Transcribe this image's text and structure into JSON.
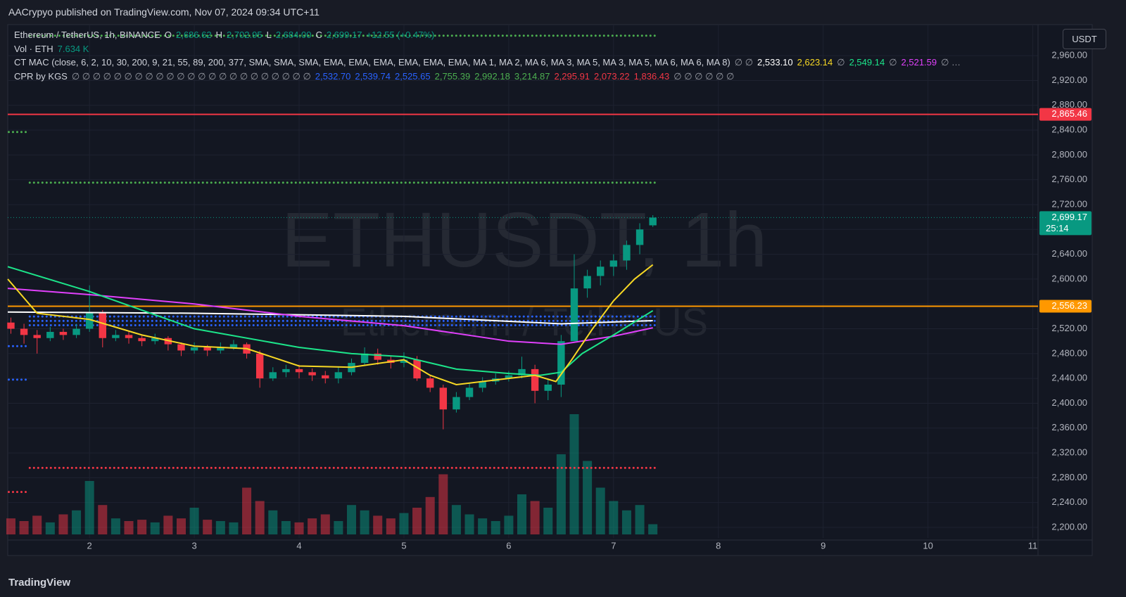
{
  "header": {
    "publisher": "AACrypyo published on TradingView.com, Nov 07, 2024 09:34 UTC+11",
    "brand": "TradingView",
    "currency_button": "USDT"
  },
  "legend": {
    "symbol": "Ethereum / TetherUS, 1h, BINANCE",
    "o_label": "O",
    "o": "2,686.62",
    "h_label": "H",
    "h": "2,702.95",
    "l_label": "L",
    "l": "2,684.00",
    "c_label": "C",
    "c": "2,699.17",
    "change": "+12.55 (+0.47%)",
    "vol_label": "Vol · ETH",
    "vol": "7.634 K",
    "mac_label": "CT MAC (close, 6, 2, 10, 30, 200, 9, 21, 55, 89, 200, 377, SMA, SMA, SMA, EMA, EMA, EMA, EMA, EMA, EMA, MA 1, MA 2, MA 6, MA 3, MA 5, MA 3, MA 5, MA 6, MA 6, MA 8)",
    "mac_na": "∅ ∅",
    "mac_white": "2,533.10",
    "mac_yellow": "2,623.14",
    "mac_na2": "∅",
    "mac_green": "2,549.14",
    "mac_na3": "∅",
    "mac_magenta": "2,521.59",
    "mac_more": "∅ …",
    "cpr_label": "CPR by KGS",
    "cpr_na": "∅ ∅ ∅ ∅ ∅ ∅ ∅ ∅ ∅ ∅ ∅ ∅ ∅ ∅ ∅ ∅ ∅ ∅ ∅ ∅ ∅ ∅ ∅",
    "cpr_blue": [
      "2,532.70",
      "2,539.74",
      "2,525.65"
    ],
    "cpr_green": [
      "2,755.39",
      "2,992.18",
      "3,214.87"
    ],
    "cpr_red": [
      "2,295.91",
      "2,073.22",
      "1,836.43"
    ],
    "cpr_na2": "∅ ∅ ∅ ∅ ∅ ∅"
  },
  "chart_data": {
    "type": "candlestick",
    "watermark": "ETHUSDT, 1h",
    "watermark_sub": "Ethereum / TetherUS",
    "grid": true,
    "up_color": "#089981",
    "down_color": "#f23645",
    "xlim": [
      1.22,
      11.05
    ],
    "ylim": [
      2183,
      3010
    ],
    "xticks": [
      2,
      3,
      4,
      5,
      6,
      7,
      8,
      9,
      10,
      11
    ],
    "yticks": [
      {
        "value": 2200,
        "label": "2,200.00"
      },
      {
        "value": 2240,
        "label": "2,240.00"
      },
      {
        "value": 2280,
        "label": "2,280.00"
      },
      {
        "value": 2320,
        "label": "2,320.00"
      },
      {
        "value": 2360,
        "label": "2,360.00"
      },
      {
        "value": 2400,
        "label": "2,400.00"
      },
      {
        "value": 2440,
        "label": "2,440.00"
      },
      {
        "value": 2480,
        "label": "2,480.00"
      },
      {
        "value": 2520,
        "label": "2,520.00"
      },
      {
        "value": 2560,
        "label": "2,560.00"
      },
      {
        "value": 2600,
        "label": "2,600.00"
      },
      {
        "value": 2640,
        "label": "2,640.00"
      },
      {
        "value": 2680,
        "label": "2,680.00"
      },
      {
        "value": 2720,
        "label": "2,720.00"
      },
      {
        "value": 2760,
        "label": "2,760.00"
      },
      {
        "value": 2800,
        "label": "2,800.00"
      },
      {
        "value": 2840,
        "label": "2,840.00"
      },
      {
        "value": 2880,
        "label": "2,880.00"
      },
      {
        "value": 2920,
        "label": "2,920.00"
      },
      {
        "value": 2960,
        "label": "2,960.00"
      }
    ],
    "x": [
      1.25,
      1.375,
      1.5,
      1.625,
      1.75,
      1.875,
      2.0,
      2.125,
      2.25,
      2.375,
      2.5,
      2.625,
      2.75,
      2.875,
      3.0,
      3.125,
      3.25,
      3.375,
      3.5,
      3.625,
      3.75,
      3.875,
      4.0,
      4.125,
      4.25,
      4.375,
      4.5,
      4.625,
      4.75,
      4.875,
      5.0,
      5.125,
      5.25,
      5.375,
      5.5,
      5.625,
      5.75,
      5.875,
      6.0,
      6.125,
      6.25,
      6.375,
      6.5,
      6.625,
      6.75,
      6.875,
      7.0,
      7.125,
      7.25,
      7.375
    ],
    "open": [
      2530,
      2520,
      2510,
      2505,
      2515,
      2510,
      2520,
      2545,
      2505,
      2510,
      2505,
      2500,
      2505,
      2495,
      2485,
      2490,
      2485,
      2490,
      2495,
      2480,
      2440,
      2450,
      2455,
      2450,
      2445,
      2440,
      2450,
      2465,
      2480,
      2470,
      2465,
      2470,
      2440,
      2425,
      2390,
      2410,
      2425,
      2435,
      2440,
      2445,
      2455,
      2420,
      2430,
      2500,
      2585,
      2605,
      2620,
      2630,
      2655,
      2686.62
    ],
    "high": [
      2538,
      2528,
      2518,
      2523,
      2520,
      2528,
      2590,
      2550,
      2518,
      2515,
      2510,
      2512,
      2508,
      2498,
      2498,
      2494,
      2498,
      2502,
      2498,
      2485,
      2458,
      2462,
      2462,
      2456,
      2452,
      2458,
      2472,
      2490,
      2488,
      2476,
      2482,
      2476,
      2445,
      2430,
      2418,
      2432,
      2442,
      2448,
      2452,
      2475,
      2462,
      2440,
      2510,
      2640,
      2615,
      2630,
      2640,
      2662,
      2690,
      2702.95
    ],
    "low": [
      2512,
      2496,
      2480,
      2500,
      2502,
      2505,
      2515,
      2490,
      2500,
      2496,
      2492,
      2495,
      2485,
      2476,
      2480,
      2476,
      2480,
      2486,
      2472,
      2425,
      2436,
      2442,
      2440,
      2436,
      2432,
      2432,
      2445,
      2460,
      2462,
      2456,
      2458,
      2436,
      2418,
      2358,
      2385,
      2405,
      2418,
      2430,
      2435,
      2440,
      2400,
      2405,
      2410,
      2500,
      2570,
      2590,
      2605,
      2615,
      2640,
      2684.0
    ],
    "close": [
      2520,
      2510,
      2505,
      2515,
      2510,
      2520,
      2545,
      2505,
      2510,
      2505,
      2500,
      2505,
      2495,
      2485,
      2490,
      2485,
      2490,
      2495,
      2480,
      2440,
      2450,
      2455,
      2450,
      2445,
      2440,
      2450,
      2465,
      2480,
      2470,
      2465,
      2470,
      2440,
      2425,
      2390,
      2410,
      2425,
      2435,
      2440,
      2445,
      2455,
      2420,
      2430,
      2500,
      2585,
      2605,
      2620,
      2630,
      2655,
      2680,
      2699.17
    ],
    "volume": [
      12,
      10,
      14,
      9,
      15,
      18,
      40,
      22,
      12,
      10,
      11,
      9,
      14,
      12,
      20,
      11,
      10,
      9,
      35,
      25,
      18,
      10,
      9,
      12,
      15,
      10,
      22,
      18,
      14,
      12,
      16,
      20,
      28,
      45,
      22,
      15,
      12,
      10,
      14,
      30,
      25,
      20,
      60,
      90,
      55,
      35,
      25,
      18,
      22,
      7.634
    ],
    "lines": [
      {
        "color": "#ffffff",
        "x": [
          1.22,
          3.0,
          5.0,
          6.5,
          7.375
        ],
        "values": [
          2547,
          2545,
          2540,
          2528,
          2533.1
        ]
      },
      {
        "color": "#e040fb",
        "x": [
          1.22,
          2.0,
          3.0,
          4.0,
          5.0,
          6.0,
          6.5,
          7.0,
          7.375
        ],
        "values": [
          2585,
          2575,
          2560,
          2540,
          2525,
          2500,
          2495,
          2508,
          2521.59
        ]
      },
      {
        "color": "#1ce48a",
        "x": [
          1.22,
          2.0,
          3.0,
          4.0,
          4.5,
          5.0,
          5.5,
          6.0,
          6.3,
          6.5,
          6.7,
          7.0,
          7.375
        ],
        "values": [
          2620,
          2580,
          2520,
          2490,
          2480,
          2475,
          2455,
          2448,
          2445,
          2450,
          2480,
          2510,
          2549.14
        ]
      },
      {
        "color": "#f7d824",
        "x": [
          1.22,
          1.5,
          2.0,
          2.5,
          3.0,
          3.5,
          4.0,
          4.5,
          5.0,
          5.25,
          5.5,
          6.0,
          6.25,
          6.45,
          6.6,
          6.8,
          7.0,
          7.2,
          7.375
        ],
        "values": [
          2600,
          2545,
          2535,
          2510,
          2492,
          2488,
          2460,
          2458,
          2470,
          2445,
          2430,
          2440,
          2445,
          2435,
          2470,
          2520,
          2565,
          2600,
          2623.14
        ]
      }
    ],
    "levels": [
      {
        "value": 2992.18,
        "color": "#4caf50",
        "xrange": [
          1.43,
          7.4
        ]
      },
      {
        "value": 2755.39,
        "color": "#4caf50",
        "xrange": [
          1.43,
          7.4
        ]
      },
      {
        "value": 2539.74,
        "color": "#2962ff",
        "xrange": [
          1.43,
          7.4
        ]
      },
      {
        "value": 2532.7,
        "color": "#2962ff",
        "xrange": [
          1.43,
          7.4
        ]
      },
      {
        "value": 2525.65,
        "color": "#2962ff",
        "xrange": [
          1.43,
          7.4
        ]
      },
      {
        "value": 2295.91,
        "color": "#f23645",
        "xrange": [
          1.43,
          7.4
        ]
      },
      {
        "value": 2837,
        "color": "#4caf50",
        "xrange": [
          1.23,
          1.42
        ]
      },
      {
        "value": 2492,
        "color": "#2962ff",
        "xrange": [
          1.23,
          1.42
        ]
      },
      {
        "value": 2438,
        "color": "#2962ff",
        "xrange": [
          1.23,
          1.42
        ]
      },
      {
        "value": 2257,
        "color": "#f23645",
        "xrange": [
          1.23,
          1.42
        ]
      }
    ],
    "price_lines": [
      {
        "value": 2865.46,
        "label": "2,865.46",
        "color": "#f23645"
      },
      {
        "value": 2556.23,
        "label": "2,556.23",
        "color": "#ff9800"
      }
    ],
    "last_price": {
      "value": 2699.17,
      "label": "2,699.17",
      "countdown": "25:14",
      "color": "#089981"
    }
  }
}
